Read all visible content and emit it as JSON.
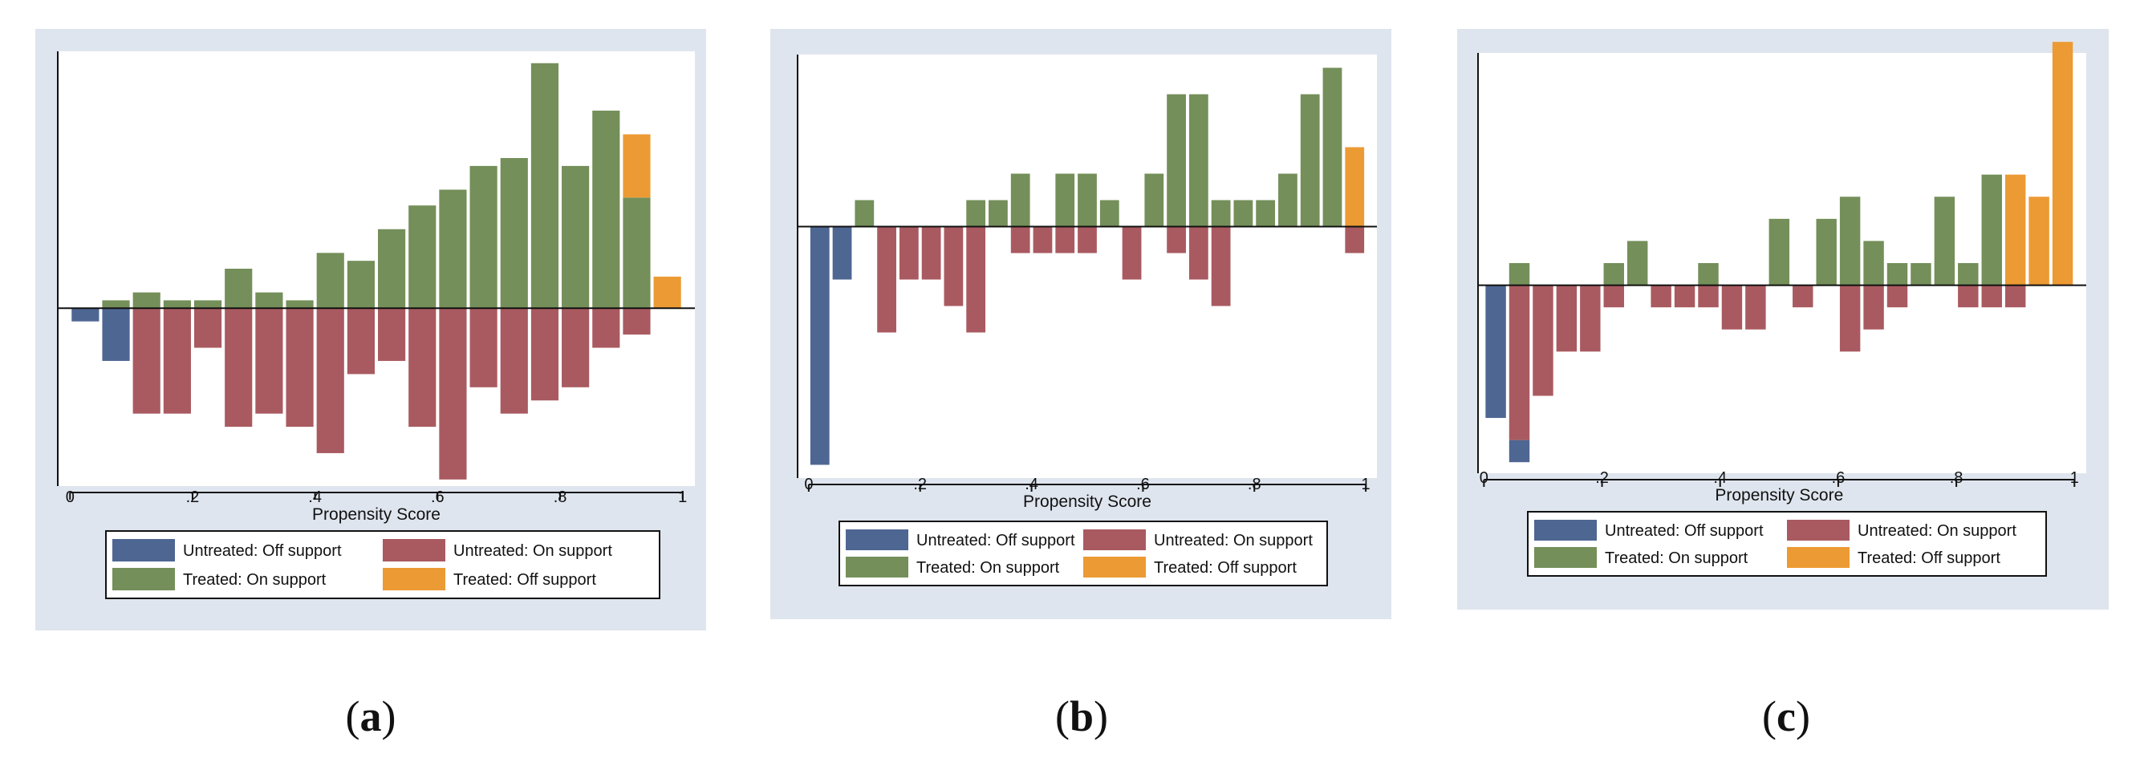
{
  "colors": {
    "untreated_off": "#4e6692",
    "untreated_on": "#a95a60",
    "treated_on": "#748f59",
    "treated_off": "#ec9a33"
  },
  "captions": [
    {
      "open": "(",
      "letter": "a",
      "close": ")"
    },
    {
      "open": "(",
      "letter": "b",
      "close": ")"
    },
    {
      "open": "(",
      "letter": "c",
      "close": ")"
    }
  ],
  "chart_data": [
    {
      "id": "a",
      "type": "bar",
      "xlabel": "Propensity Score",
      "xticks": [
        "0",
        ".2",
        ".4",
        ".6",
        ".8",
        "1"
      ],
      "xlim": [
        -0.02,
        1.02
      ],
      "ylim": [
        -13.5,
        19.5
      ],
      "bin_width": 0.05,
      "legend": [
        "Untreated: Off support",
        "Untreated: On support",
        "Treated: On support",
        "Treated: Off support"
      ],
      "series": [
        {
          "name": "Untreated: Off support",
          "color_key": "untreated_off",
          "bars": [
            {
              "x": 0.025,
              "y0": 0,
              "y1": -1
            },
            {
              "x": 0.075,
              "y0": 0,
              "y1": -4
            }
          ]
        },
        {
          "name": "Untreated: On support",
          "color_key": "untreated_on",
          "bars": [
            {
              "x": 0.125,
              "y0": 0,
              "y1": -8
            },
            {
              "x": 0.175,
              "y0": 0,
              "y1": -8
            },
            {
              "x": 0.225,
              "y0": 0,
              "y1": -3
            },
            {
              "x": 0.275,
              "y0": 0,
              "y1": -9
            },
            {
              "x": 0.325,
              "y0": 0,
              "y1": -8
            },
            {
              "x": 0.375,
              "y0": 0,
              "y1": -9
            },
            {
              "x": 0.425,
              "y0": 0,
              "y1": -11
            },
            {
              "x": 0.475,
              "y0": 0,
              "y1": -5
            },
            {
              "x": 0.525,
              "y0": 0,
              "y1": -4
            },
            {
              "x": 0.575,
              "y0": 0,
              "y1": -9
            },
            {
              "x": 0.625,
              "y0": 0,
              "y1": -13
            },
            {
              "x": 0.675,
              "y0": 0,
              "y1": -6
            },
            {
              "x": 0.725,
              "y0": 0,
              "y1": -8
            },
            {
              "x": 0.775,
              "y0": 0,
              "y1": -7
            },
            {
              "x": 0.825,
              "y0": 0,
              "y1": -6
            },
            {
              "x": 0.875,
              "y0": 0,
              "y1": -3
            },
            {
              "x": 0.925,
              "y0": 0,
              "y1": -2
            }
          ]
        },
        {
          "name": "Treated: On support",
          "color_key": "treated_on",
          "bars": [
            {
              "x": 0.075,
              "y0": 0,
              "y1": 0.6
            },
            {
              "x": 0.125,
              "y0": 0,
              "y1": 1.2
            },
            {
              "x": 0.175,
              "y0": 0,
              "y1": 0.6
            },
            {
              "x": 0.225,
              "y0": 0,
              "y1": 0.6
            },
            {
              "x": 0.275,
              "y0": 0,
              "y1": 3
            },
            {
              "x": 0.325,
              "y0": 0,
              "y1": 1.2
            },
            {
              "x": 0.375,
              "y0": 0,
              "y1": 0.6
            },
            {
              "x": 0.425,
              "y0": 0,
              "y1": 4.2
            },
            {
              "x": 0.475,
              "y0": 0,
              "y1": 3.6
            },
            {
              "x": 0.525,
              "y0": 0,
              "y1": 6
            },
            {
              "x": 0.575,
              "y0": 0,
              "y1": 7.8
            },
            {
              "x": 0.625,
              "y0": 0,
              "y1": 9
            },
            {
              "x": 0.675,
              "y0": 0,
              "y1": 10.8
            },
            {
              "x": 0.725,
              "y0": 0,
              "y1": 11.4
            },
            {
              "x": 0.775,
              "y0": 0,
              "y1": 18.6
            },
            {
              "x": 0.825,
              "y0": 0,
              "y1": 10.8
            },
            {
              "x": 0.875,
              "y0": 0,
              "y1": 15
            },
            {
              "x": 0.925,
              "y0": 0,
              "y1": 8.4
            }
          ]
        },
        {
          "name": "Treated: Off support",
          "color_key": "treated_off",
          "bars": [
            {
              "x": 0.925,
              "y0": 8.4,
              "y1": 13.2
            },
            {
              "x": 0.975,
              "y0": 0,
              "y1": 2.4
            }
          ]
        }
      ]
    },
    {
      "id": "b",
      "type": "bar",
      "xlabel": "Propensity Score",
      "xticks": [
        "0",
        ".2",
        ".4",
        ".6",
        ".8",
        "1"
      ],
      "xlim": [
        -0.02,
        1.02
      ],
      "ylim": [
        -9.5,
        6.5
      ],
      "bin_width": 0.04,
      "legend": [
        "Untreated: Off support",
        "Untreated: On support",
        "Treated: On support",
        "Treated: Off support"
      ],
      "series": [
        {
          "name": "Untreated: Off support",
          "color_key": "untreated_off",
          "bars": [
            {
              "x": 0.02,
              "y0": 0,
              "y1": -9
            },
            {
              "x": 0.06,
              "y0": 0,
              "y1": -2
            }
          ]
        },
        {
          "name": "Untreated: On support",
          "color_key": "untreated_on",
          "bars": [
            {
              "x": 0.14,
              "y0": 0,
              "y1": -4
            },
            {
              "x": 0.18,
              "y0": 0,
              "y1": -2
            },
            {
              "x": 0.22,
              "y0": 0,
              "y1": -2
            },
            {
              "x": 0.26,
              "y0": 0,
              "y1": -3
            },
            {
              "x": 0.3,
              "y0": 0,
              "y1": -4
            },
            {
              "x": 0.38,
              "y0": 0,
              "y1": -1
            },
            {
              "x": 0.42,
              "y0": 0,
              "y1": -1
            },
            {
              "x": 0.46,
              "y0": 0,
              "y1": -1
            },
            {
              "x": 0.5,
              "y0": 0,
              "y1": -1
            },
            {
              "x": 0.58,
              "y0": 0,
              "y1": -2
            },
            {
              "x": 0.66,
              "y0": 0,
              "y1": -1
            },
            {
              "x": 0.7,
              "y0": 0,
              "y1": -2
            },
            {
              "x": 0.74,
              "y0": 0,
              "y1": -3
            },
            {
              "x": 0.98,
              "y0": 0,
              "y1": -1
            }
          ]
        },
        {
          "name": "Treated: On support",
          "color_key": "treated_on",
          "bars": [
            {
              "x": 0.1,
              "y0": 0,
              "y1": 1
            },
            {
              "x": 0.3,
              "y0": 0,
              "y1": 1
            },
            {
              "x": 0.34,
              "y0": 0,
              "y1": 1
            },
            {
              "x": 0.38,
              "y0": 0,
              "y1": 2
            },
            {
              "x": 0.46,
              "y0": 0,
              "y1": 2
            },
            {
              "x": 0.5,
              "y0": 0,
              "y1": 2
            },
            {
              "x": 0.54,
              "y0": 0,
              "y1": 1
            },
            {
              "x": 0.62,
              "y0": 0,
              "y1": 2
            },
            {
              "x": 0.66,
              "y0": 0,
              "y1": 5
            },
            {
              "x": 0.7,
              "y0": 0,
              "y1": 5
            },
            {
              "x": 0.74,
              "y0": 0,
              "y1": 1
            },
            {
              "x": 0.78,
              "y0": 0,
              "y1": 1
            },
            {
              "x": 0.82,
              "y0": 0,
              "y1": 1
            },
            {
              "x": 0.86,
              "y0": 0,
              "y1": 2
            },
            {
              "x": 0.9,
              "y0": 0,
              "y1": 5
            },
            {
              "x": 0.94,
              "y0": 0,
              "y1": 6
            }
          ]
        },
        {
          "name": "Treated: Off support",
          "color_key": "treated_off",
          "bars": [
            {
              "x": 0.98,
              "y0": 0,
              "y1": 3
            }
          ]
        }
      ]
    },
    {
      "id": "c",
      "type": "bar",
      "xlabel": "Propensity Score",
      "xticks": [
        "0",
        ".2",
        ".4",
        ".6",
        ".8",
        "1"
      ],
      "xlim": [
        -0.01,
        1.02
      ],
      "ylim": [
        -8.5,
        10.5
      ],
      "bin_width": 0.04,
      "legend": [
        "Untreated: Off support",
        "Untreated: On support",
        "Treated: On support",
        "Treated: Off support"
      ],
      "series": [
        {
          "name": "Untreated: Off support",
          "color_key": "untreated_off",
          "bars": [
            {
              "x": 0.02,
              "y0": 0,
              "y1": -6
            },
            {
              "x": 0.06,
              "y0": -7,
              "y1": -8
            }
          ]
        },
        {
          "name": "Untreated: On support",
          "color_key": "untreated_on",
          "bars": [
            {
              "x": 0.06,
              "y0": 0,
              "y1": -7
            },
            {
              "x": 0.1,
              "y0": 0,
              "y1": -5
            },
            {
              "x": 0.14,
              "y0": 0,
              "y1": -3
            },
            {
              "x": 0.18,
              "y0": 0,
              "y1": -3
            },
            {
              "x": 0.22,
              "y0": 0,
              "y1": -1
            },
            {
              "x": 0.3,
              "y0": 0,
              "y1": -1
            },
            {
              "x": 0.34,
              "y0": 0,
              "y1": -1
            },
            {
              "x": 0.38,
              "y0": 0,
              "y1": -1
            },
            {
              "x": 0.42,
              "y0": 0,
              "y1": -2
            },
            {
              "x": 0.46,
              "y0": 0,
              "y1": -2
            },
            {
              "x": 0.54,
              "y0": 0,
              "y1": -1
            },
            {
              "x": 0.62,
              "y0": 0,
              "y1": -3
            },
            {
              "x": 0.66,
              "y0": 0,
              "y1": -2
            },
            {
              "x": 0.7,
              "y0": 0,
              "y1": -1
            },
            {
              "x": 0.82,
              "y0": 0,
              "y1": -1
            },
            {
              "x": 0.86,
              "y0": 0,
              "y1": -1
            },
            {
              "x": 0.9,
              "y0": 0,
              "y1": -1
            }
          ]
        },
        {
          "name": "Treated: On support",
          "color_key": "treated_on",
          "bars": [
            {
              "x": 0.06,
              "y0": 0,
              "y1": 1
            },
            {
              "x": 0.22,
              "y0": 0,
              "y1": 1
            },
            {
              "x": 0.26,
              "y0": 0,
              "y1": 2
            },
            {
              "x": 0.38,
              "y0": 0,
              "y1": 1
            },
            {
              "x": 0.5,
              "y0": 0,
              "y1": 3
            },
            {
              "x": 0.58,
              "y0": 0,
              "y1": 3
            },
            {
              "x": 0.62,
              "y0": 0,
              "y1": 4
            },
            {
              "x": 0.66,
              "y0": 0,
              "y1": 2
            },
            {
              "x": 0.7,
              "y0": 0,
              "y1": 1
            },
            {
              "x": 0.74,
              "y0": 0,
              "y1": 1
            },
            {
              "x": 0.78,
              "y0": 0,
              "y1": 4
            },
            {
              "x": 0.82,
              "y0": 0,
              "y1": 1
            },
            {
              "x": 0.86,
              "y0": 0,
              "y1": 5
            }
          ]
        },
        {
          "name": "Treated: Off support",
          "color_key": "treated_off",
          "bars": [
            {
              "x": 0.9,
              "y0": 0,
              "y1": 5
            },
            {
              "x": 0.94,
              "y0": 0,
              "y1": 4
            },
            {
              "x": 0.98,
              "y0": 0,
              "y1": 11
            }
          ]
        }
      ]
    }
  ]
}
